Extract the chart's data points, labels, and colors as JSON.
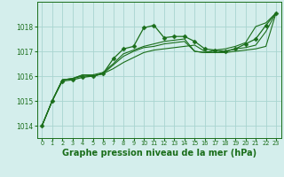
{
  "background_color": "#d4eeec",
  "grid_color": "#a8d4d0",
  "line_color": "#1a6e1a",
  "marker_color": "#1a6e1a",
  "xlabel": "Graphe pression niveau de la mer (hPa)",
  "xlabel_fontsize": 7,
  "xlim": [
    -0.5,
    23.5
  ],
  "ylim": [
    1013.5,
    1019.0
  ],
  "yticks": [
    1014,
    1015,
    1016,
    1017,
    1018
  ],
  "xticks": [
    0,
    1,
    2,
    3,
    4,
    5,
    6,
    7,
    8,
    9,
    10,
    11,
    12,
    13,
    14,
    15,
    16,
    17,
    18,
    19,
    20,
    21,
    22,
    23
  ],
  "series": [
    {
      "x": [
        0,
        1,
        2,
        3,
        4,
        5,
        6,
        7,
        8,
        9,
        10,
        11,
        12,
        13,
        14,
        15,
        16,
        17,
        18,
        19,
        20,
        21,
        22,
        23
      ],
      "y": [
        1014.0,
        1015.0,
        1015.8,
        1015.85,
        1015.95,
        1016.0,
        1016.1,
        1016.7,
        1017.1,
        1017.2,
        1017.95,
        1018.05,
        1017.55,
        1017.6,
        1017.6,
        1017.4,
        1017.1,
        1017.05,
        1017.0,
        1017.1,
        1017.3,
        1017.5,
        1018.05,
        1018.55
      ],
      "marker": "D",
      "markersize": 2.5,
      "linewidth": 0.9
    },
    {
      "x": [
        0,
        1,
        2,
        3,
        4,
        5,
        6,
        7,
        8,
        9,
        10,
        11,
        12,
        13,
        14,
        15,
        16,
        17,
        18,
        19,
        20,
        21,
        22,
        23
      ],
      "y": [
        1014.0,
        1015.0,
        1015.85,
        1015.9,
        1016.0,
        1016.0,
        1016.1,
        1016.3,
        1016.55,
        1016.75,
        1016.95,
        1017.05,
        1017.1,
        1017.15,
        1017.2,
        1017.25,
        1017.0,
        1016.95,
        1016.95,
        1017.0,
        1017.05,
        1017.1,
        1017.2,
        1018.55
      ],
      "marker": null,
      "markersize": 0,
      "linewidth": 0.8
    },
    {
      "x": [
        0,
        1,
        2,
        3,
        4,
        5,
        6,
        7,
        8,
        9,
        10,
        11,
        12,
        13,
        14,
        15,
        16,
        17,
        18,
        19,
        20,
        21,
        22,
        23
      ],
      "y": [
        1014.0,
        1015.0,
        1015.85,
        1015.9,
        1016.05,
        1016.0,
        1016.1,
        1016.45,
        1016.8,
        1017.0,
        1017.15,
        1017.2,
        1017.3,
        1017.35,
        1017.4,
        1017.0,
        1016.95,
        1016.95,
        1017.0,
        1017.1,
        1017.15,
        1017.25,
        1017.8,
        1018.55
      ],
      "marker": null,
      "markersize": 0,
      "linewidth": 0.8
    },
    {
      "x": [
        0,
        1,
        2,
        3,
        4,
        5,
        6,
        7,
        8,
        9,
        10,
        11,
        12,
        13,
        14,
        15,
        16,
        17,
        18,
        19,
        20,
        21,
        22,
        23
      ],
      "y": [
        1014.0,
        1015.0,
        1015.85,
        1015.9,
        1016.05,
        1016.05,
        1016.15,
        1016.5,
        1016.9,
        1017.05,
        1017.2,
        1017.3,
        1017.4,
        1017.45,
        1017.5,
        1017.0,
        1016.95,
        1017.05,
        1017.1,
        1017.2,
        1017.35,
        1018.0,
        1018.15,
        1018.55
      ],
      "marker": null,
      "markersize": 0,
      "linewidth": 0.8
    }
  ]
}
